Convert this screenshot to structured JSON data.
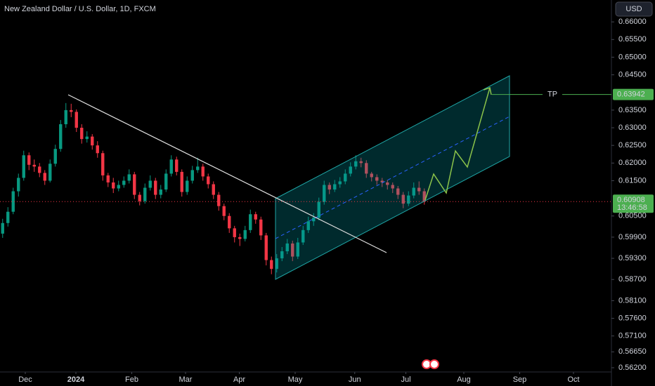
{
  "header": {
    "title": "New Zealand Dollar / U.S. Dollar, 1D, FXCM",
    "currency": "USD"
  },
  "chart_data": {
    "type": "candlestick",
    "up_color": "#089981",
    "down_color": "#f23645",
    "candles": [
      [
        0.6,
        0.6042,
        0.5988,
        0.603
      ],
      [
        0.603,
        0.6075,
        0.602,
        0.6062
      ],
      [
        0.6062,
        0.613,
        0.6055,
        0.612
      ],
      [
        0.612,
        0.617,
        0.6105,
        0.6158
      ],
      [
        0.6158,
        0.6235,
        0.615,
        0.6222
      ],
      [
        0.6222,
        0.623,
        0.618,
        0.6195
      ],
      [
        0.6195,
        0.621,
        0.6175,
        0.619
      ],
      [
        0.619,
        0.62,
        0.616,
        0.6172
      ],
      [
        0.6172,
        0.618,
        0.6138,
        0.615
      ],
      [
        0.615,
        0.621,
        0.6145,
        0.6198
      ],
      [
        0.6198,
        0.6252,
        0.619,
        0.624
      ],
      [
        0.624,
        0.6322,
        0.6232,
        0.631
      ],
      [
        0.631,
        0.637,
        0.63,
        0.635
      ],
      [
        0.635,
        0.6368,
        0.633,
        0.6345
      ],
      [
        0.6345,
        0.6352,
        0.6288,
        0.63
      ],
      [
        0.63,
        0.631,
        0.6255,
        0.6268
      ],
      [
        0.6268,
        0.629,
        0.6258,
        0.6275
      ],
      [
        0.6275,
        0.6282,
        0.6238,
        0.625
      ],
      [
        0.625,
        0.6262,
        0.6215,
        0.6228
      ],
      [
        0.6228,
        0.6235,
        0.615,
        0.6165
      ],
      [
        0.6165,
        0.6172,
        0.6132,
        0.6145
      ],
      [
        0.6145,
        0.6158,
        0.6115,
        0.6128
      ],
      [
        0.6128,
        0.615,
        0.612,
        0.6138
      ],
      [
        0.6138,
        0.6162,
        0.613,
        0.615
      ],
      [
        0.615,
        0.6182,
        0.6142,
        0.6168
      ],
      [
        0.6168,
        0.6175,
        0.6098,
        0.611
      ],
      [
        0.611,
        0.6118,
        0.608,
        0.6092
      ],
      [
        0.6092,
        0.6142,
        0.6085,
        0.613
      ],
      [
        0.613,
        0.6165,
        0.6122,
        0.615
      ],
      [
        0.615,
        0.6158,
        0.6098,
        0.611
      ],
      [
        0.611,
        0.6138,
        0.61,
        0.6125
      ],
      [
        0.6125,
        0.6182,
        0.6118,
        0.617
      ],
      [
        0.617,
        0.6222,
        0.6162,
        0.621
      ],
      [
        0.621,
        0.6218,
        0.6165,
        0.6175
      ],
      [
        0.6175,
        0.6182,
        0.6105,
        0.6118
      ],
      [
        0.6118,
        0.6162,
        0.611,
        0.615
      ],
      [
        0.615,
        0.6192,
        0.6142,
        0.618
      ],
      [
        0.618,
        0.6215,
        0.6172,
        0.619
      ],
      [
        0.619,
        0.6198,
        0.615,
        0.6162
      ],
      [
        0.6162,
        0.617,
        0.6128,
        0.614
      ],
      [
        0.614,
        0.6148,
        0.6098,
        0.611
      ],
      [
        0.611,
        0.6118,
        0.6065,
        0.6078
      ],
      [
        0.6078,
        0.6085,
        0.6038,
        0.605
      ],
      [
        0.605,
        0.6058,
        0.6002,
        0.6015
      ],
      [
        0.6015,
        0.6022,
        0.5975,
        0.599
      ],
      [
        0.599,
        0.6,
        0.5965,
        0.5985
      ],
      [
        0.5985,
        0.6022,
        0.5978,
        0.601
      ],
      [
        0.601,
        0.6068,
        0.6002,
        0.6055
      ],
      [
        0.6055,
        0.6062,
        0.6028,
        0.604
      ],
      [
        0.604,
        0.6048,
        0.5982,
        0.5995
      ],
      [
        0.5995,
        0.6002,
        0.591,
        0.5925
      ],
      [
        0.5925,
        0.5935,
        0.5885,
        0.59
      ],
      [
        0.59,
        0.5942,
        0.589,
        0.593
      ],
      [
        0.593,
        0.5962,
        0.5922,
        0.595
      ],
      [
        0.595,
        0.5985,
        0.5942,
        0.5972
      ],
      [
        0.5972,
        0.598,
        0.5922,
        0.5935
      ],
      [
        0.5935,
        0.5988,
        0.5928,
        0.5975
      ],
      [
        0.5975,
        0.6022,
        0.5968,
        0.601
      ],
      [
        0.601,
        0.6048,
        0.6002,
        0.6035
      ],
      [
        0.6035,
        0.6058,
        0.6022,
        0.6045
      ],
      [
        0.6045,
        0.6102,
        0.6038,
        0.609
      ],
      [
        0.609,
        0.615,
        0.6082,
        0.6138
      ],
      [
        0.6138,
        0.6145,
        0.6112,
        0.6125
      ],
      [
        0.6125,
        0.6152,
        0.6118,
        0.614
      ],
      [
        0.614,
        0.616,
        0.613,
        0.6148
      ],
      [
        0.6148,
        0.6182,
        0.614,
        0.617
      ],
      [
        0.617,
        0.6202,
        0.6162,
        0.619
      ],
      [
        0.619,
        0.6222,
        0.6182,
        0.6205
      ],
      [
        0.6205,
        0.6215,
        0.6188,
        0.62
      ],
      [
        0.62,
        0.6208,
        0.6158,
        0.617
      ],
      [
        0.617,
        0.6175,
        0.6148,
        0.616
      ],
      [
        0.616,
        0.6168,
        0.6138,
        0.615
      ],
      [
        0.615,
        0.6158,
        0.6132,
        0.6145
      ],
      [
        0.6145,
        0.6152,
        0.6125,
        0.6138
      ],
      [
        0.6138,
        0.6145,
        0.6115,
        0.6128
      ],
      [
        0.6128,
        0.6135,
        0.6098,
        0.611
      ],
      [
        0.611,
        0.6118,
        0.6072,
        0.6085
      ],
      [
        0.6085,
        0.612,
        0.6078,
        0.6108
      ],
      [
        0.6108,
        0.6145,
        0.61,
        0.613
      ],
      [
        0.613,
        0.6148,
        0.611,
        0.612
      ],
      [
        0.612,
        0.6128,
        0.6082,
        0.6091
      ]
    ],
    "xlim": [
      -0.5,
      115.5
    ],
    "xticks": [
      {
        "value": 4.3,
        "label": "Dec"
      },
      {
        "value": 13.9,
        "label": "2024"
      },
      {
        "value": 24.5,
        "label": "Feb"
      },
      {
        "value": 34.7,
        "label": "Mar"
      },
      {
        "value": 44.9,
        "label": "Apr"
      },
      {
        "value": 55.5,
        "label": "May"
      },
      {
        "value": 66.8,
        "label": "Jun"
      },
      {
        "value": 76.5,
        "label": "Jul"
      },
      {
        "value": 87.5,
        "label": "Aug"
      },
      {
        "value": 98.1,
        "label": "Sep"
      },
      {
        "value": 108.3,
        "label": "Oct"
      }
    ],
    "ylim": [
      0.5608,
      0.6662
    ],
    "yticks": [
      {
        "value": 0.66,
        "label": "0.66000"
      },
      {
        "value": 0.655,
        "label": "0.65500"
      },
      {
        "value": 0.65,
        "label": "0.65000"
      },
      {
        "value": 0.645,
        "label": "0.64500"
      },
      {
        "value": 0.635,
        "label": "0.63500"
      },
      {
        "value": 0.63,
        "label": "0.63000"
      },
      {
        "value": 0.625,
        "label": "0.62500"
      },
      {
        "value": 0.62,
        "label": "0.62000"
      },
      {
        "value": 0.615,
        "label": "0.61500"
      },
      {
        "value": 0.605,
        "label": "0.60500"
      },
      {
        "value": 0.599,
        "label": "0.59900"
      },
      {
        "value": 0.593,
        "label": "0.59300"
      },
      {
        "value": 0.587,
        "label": "0.58700"
      },
      {
        "value": 0.581,
        "label": "0.58100"
      },
      {
        "value": 0.576,
        "label": "0.57600"
      },
      {
        "value": 0.571,
        "label": "0.57100"
      },
      {
        "value": 0.5665,
        "label": "0.56650"
      },
      {
        "value": 0.562,
        "label": "0.56200"
      }
    ],
    "last_price": 0.60908,
    "countdown": "13:46:58",
    "target": {
      "label": "TP",
      "value": 0.63942,
      "color": "#4caf50"
    }
  }
}
